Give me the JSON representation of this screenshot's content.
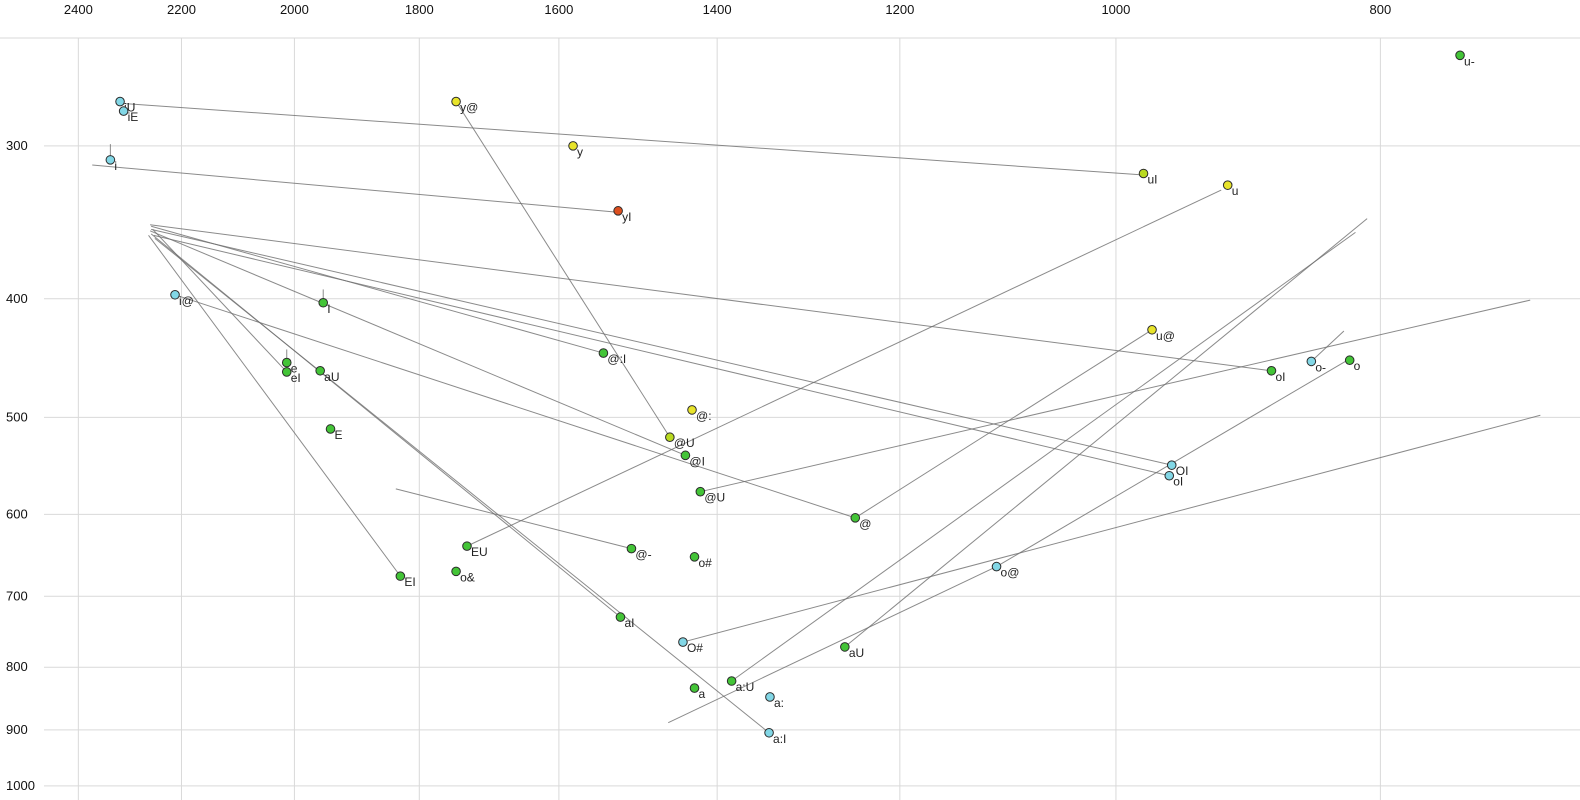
{
  "chart_data": {
    "type": "scatter",
    "title": "",
    "xlabel": "",
    "ylabel": "",
    "grid": true,
    "x_axis": {
      "ticks": [
        2400,
        2200,
        2000,
        1800,
        1600,
        1400,
        1200,
        1000,
        800
      ],
      "domain": [
        2564,
        676
      ],
      "scale": "log",
      "reversed": true
    },
    "y_axis": {
      "ticks": [
        300,
        400,
        500,
        600,
        700,
        800,
        900,
        1000
      ],
      "domain": [
        228,
        1027
      ],
      "scale": "log",
      "inverted": true
    },
    "colors": {
      "green": "#43c437",
      "yellow": "#e8e42a",
      "yellowgreen": "#b9da20",
      "cyan": "#82d7e6",
      "red": "#dd4f1f"
    },
    "points": [
      {
        "label": "iU",
        "f2": 2317,
        "f1": 276,
        "color": "cyan"
      },
      {
        "label": "iE",
        "f2": 2310,
        "f1": 281,
        "color": "cyan"
      },
      {
        "label": "i",
        "f2": 2336,
        "f1": 308,
        "color": "cyan"
      },
      {
        "label": "y@",
        "f2": 1745,
        "f1": 276,
        "color": "yellow"
      },
      {
        "label": "y",
        "f2": 1581,
        "f1": 300,
        "color": "yellow"
      },
      {
        "label": "yI",
        "f2": 1522,
        "f1": 339,
        "color": "red"
      },
      {
        "label": "uI",
        "f2": 977,
        "f1": 316,
        "color": "yellowgreen"
      },
      {
        "label": "u",
        "f2": 910,
        "f1": 323,
        "color": "yellow"
      },
      {
        "label": "u-",
        "f2": 748,
        "f1": 253,
        "color": "green"
      },
      {
        "label": "i@",
        "f2": 2212,
        "f1": 397,
        "color": "cyan"
      },
      {
        "label": "I",
        "f2": 1952,
        "f1": 403,
        "color": "green"
      },
      {
        "label": "u@",
        "f2": 970,
        "f1": 424,
        "color": "yellow"
      },
      {
        "label": "@:I",
        "f2": 1541,
        "f1": 443,
        "color": "green"
      },
      {
        "label": "o-",
        "f2": 848,
        "f1": 450,
        "color": "cyan"
      },
      {
        "label": "o",
        "f2": 821,
        "f1": 449,
        "color": "green"
      },
      {
        "label": "oI",
        "f2": 877,
        "f1": 458,
        "color": "green"
      },
      {
        "label": "e",
        "f2": 2013,
        "f1": 451,
        "color": "green"
      },
      {
        "label": "eI",
        "f2": 2013,
        "f1": 459,
        "color": "green"
      },
      {
        "label": "aU",
        "f2": 1957,
        "f1": 458,
        "color": "green"
      },
      {
        "label": "@:",
        "f2": 1430,
        "f1": 493,
        "color": "yellow"
      },
      {
        "label": "E",
        "f2": 1940,
        "f1": 511,
        "color": "green"
      },
      {
        "label": "@U",
        "f2": 1457,
        "f1": 519,
        "color": "yellowgreen"
      },
      {
        "label": "@I",
        "f2": 1438,
        "f1": 537,
        "color": "green"
      },
      {
        "label": "@U",
        "f2": 1420,
        "f1": 575,
        "color": "green"
      },
      {
        "label": "@",
        "f2": 1246,
        "f1": 604,
        "color": "green"
      },
      {
        "label": "EU",
        "f2": 1729,
        "f1": 637,
        "color": "green"
      },
      {
        "label": "@-",
        "f2": 1505,
        "f1": 640,
        "color": "green"
      },
      {
        "label": "o#",
        "f2": 1427,
        "f1": 650,
        "color": "green"
      },
      {
        "label": "o&",
        "f2": 1745,
        "f1": 668,
        "color": "green"
      },
      {
        "label": "EI",
        "f2": 1829,
        "f1": 674,
        "color": "green"
      },
      {
        "label": "o@",
        "f2": 1106,
        "f1": 662,
        "color": "cyan"
      },
      {
        "label": "OI",
        "f2": 954,
        "f1": 547,
        "color": "cyan"
      },
      {
        "label": "oI",
        "f2": 956,
        "f1": 558,
        "color": "cyan"
      },
      {
        "label": "aI",
        "f2": 1519,
        "f1": 728,
        "color": "green"
      },
      {
        "label": "O#",
        "f2": 1441,
        "f1": 763,
        "color": "cyan"
      },
      {
        "label": "aU",
        "f2": 1257,
        "f1": 770,
        "color": "green"
      },
      {
        "label": "a",
        "f2": 1427,
        "f1": 832,
        "color": "green"
      },
      {
        "label": "a:U",
        "f2": 1383,
        "f1": 821,
        "color": "green"
      },
      {
        "label": "a:",
        "f2": 1339,
        "f1": 846,
        "color": "cyan"
      },
      {
        "label": "a:I",
        "f2": 1340,
        "f1": 905,
        "color": "cyan"
      }
    ],
    "trajectories": [
      [
        [
          2311,
          277
        ],
        [
          975,
          317
        ]
      ],
      [
        [
          1521,
          340
        ],
        [
          2372,
          311
        ]
      ],
      [
        [
          1745,
          276
        ],
        [
          1457,
          519
        ]
      ],
      [
        [
          2254,
          351
        ],
        [
          2013,
          459
        ]
      ],
      [
        [
          2257,
          349
        ],
        [
          1541,
          443
        ]
      ],
      [
        [
          2259,
          352
        ],
        [
          1438,
          537
        ]
      ],
      [
        [
          2262,
          355
        ],
        [
          1829,
          674
        ]
      ],
      [
        [
          2257,
          354
        ],
        [
          1519,
          728
        ]
      ],
      [
        [
          2250,
          357
        ],
        [
          1340,
          905
        ]
      ],
      [
        [
          2259,
          348
        ],
        [
          877,
          458
        ]
      ],
      [
        [
          2257,
          351
        ],
        [
          954,
          547
        ]
      ],
      [
        [
          2252,
          355
        ],
        [
          956,
          558
        ]
      ],
      [
        [
          2212,
          397
        ],
        [
          1246,
          604
        ]
      ],
      [
        [
          970,
          424
        ],
        [
          1246,
          604
        ]
      ],
      [
        [
          1729,
          637
        ],
        [
          915,
          326
        ]
      ],
      [
        [
          1257,
          770
        ],
        [
          809,
          344
        ]
      ],
      [
        [
          1383,
          821
        ],
        [
          817,
          353
        ]
      ],
      [
        [
          1106,
          662
        ],
        [
          824,
          450
        ]
      ],
      [
        [
          1106,
          662
        ],
        [
          1459,
          888
        ]
      ],
      [
        [
          1441,
          763
        ],
        [
          699,
          498
        ]
      ],
      [
        [
          848,
          450
        ],
        [
          825,
          425
        ]
      ],
      [
        [
          2336,
          299
        ],
        [
          2336,
          307
        ]
      ],
      [
        [
          2013,
          440
        ],
        [
          2013,
          451
        ]
      ],
      [
        [
          1952,
          393
        ],
        [
          1952,
          403
        ]
      ],
      [
        [
          1420,
          575
        ],
        [
          705,
          401
        ]
      ],
      [
        [
          1505,
          640
        ],
        [
          1836,
          572
        ]
      ]
    ]
  }
}
